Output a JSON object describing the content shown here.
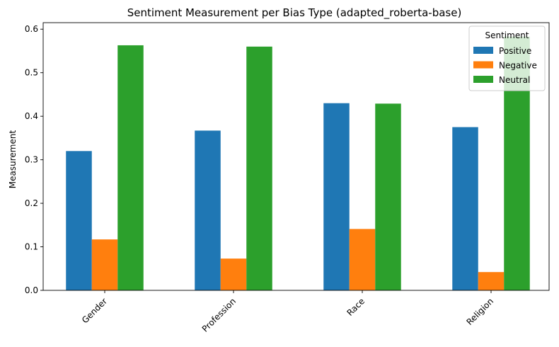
{
  "chart_data": {
    "type": "bar",
    "title": "Sentiment Measurement per Bias Type (adapted_roberta-base)",
    "xlabel": "",
    "ylabel": "Measurement",
    "categories": [
      "Gender",
      "Profession",
      "Race",
      "Religion"
    ],
    "series": [
      {
        "name": "Positive",
        "color": "#1f77b4",
        "values": [
          0.32,
          0.367,
          0.43,
          0.375
        ]
      },
      {
        "name": "Negative",
        "color": "#ff7f0e",
        "values": [
          0.117,
          0.073,
          0.141,
          0.042
        ]
      },
      {
        "name": "Neutral",
        "color": "#2ca02c",
        "values": [
          0.563,
          0.56,
          0.429,
          0.583
        ]
      }
    ],
    "ylim": [
      0,
      0.615
    ],
    "yticks": [
      "0.0",
      "0.1",
      "0.2",
      "0.3",
      "0.4",
      "0.5",
      "0.6"
    ],
    "legend": {
      "title": "Sentiment",
      "placement": "top-right"
    },
    "grid": false
  }
}
